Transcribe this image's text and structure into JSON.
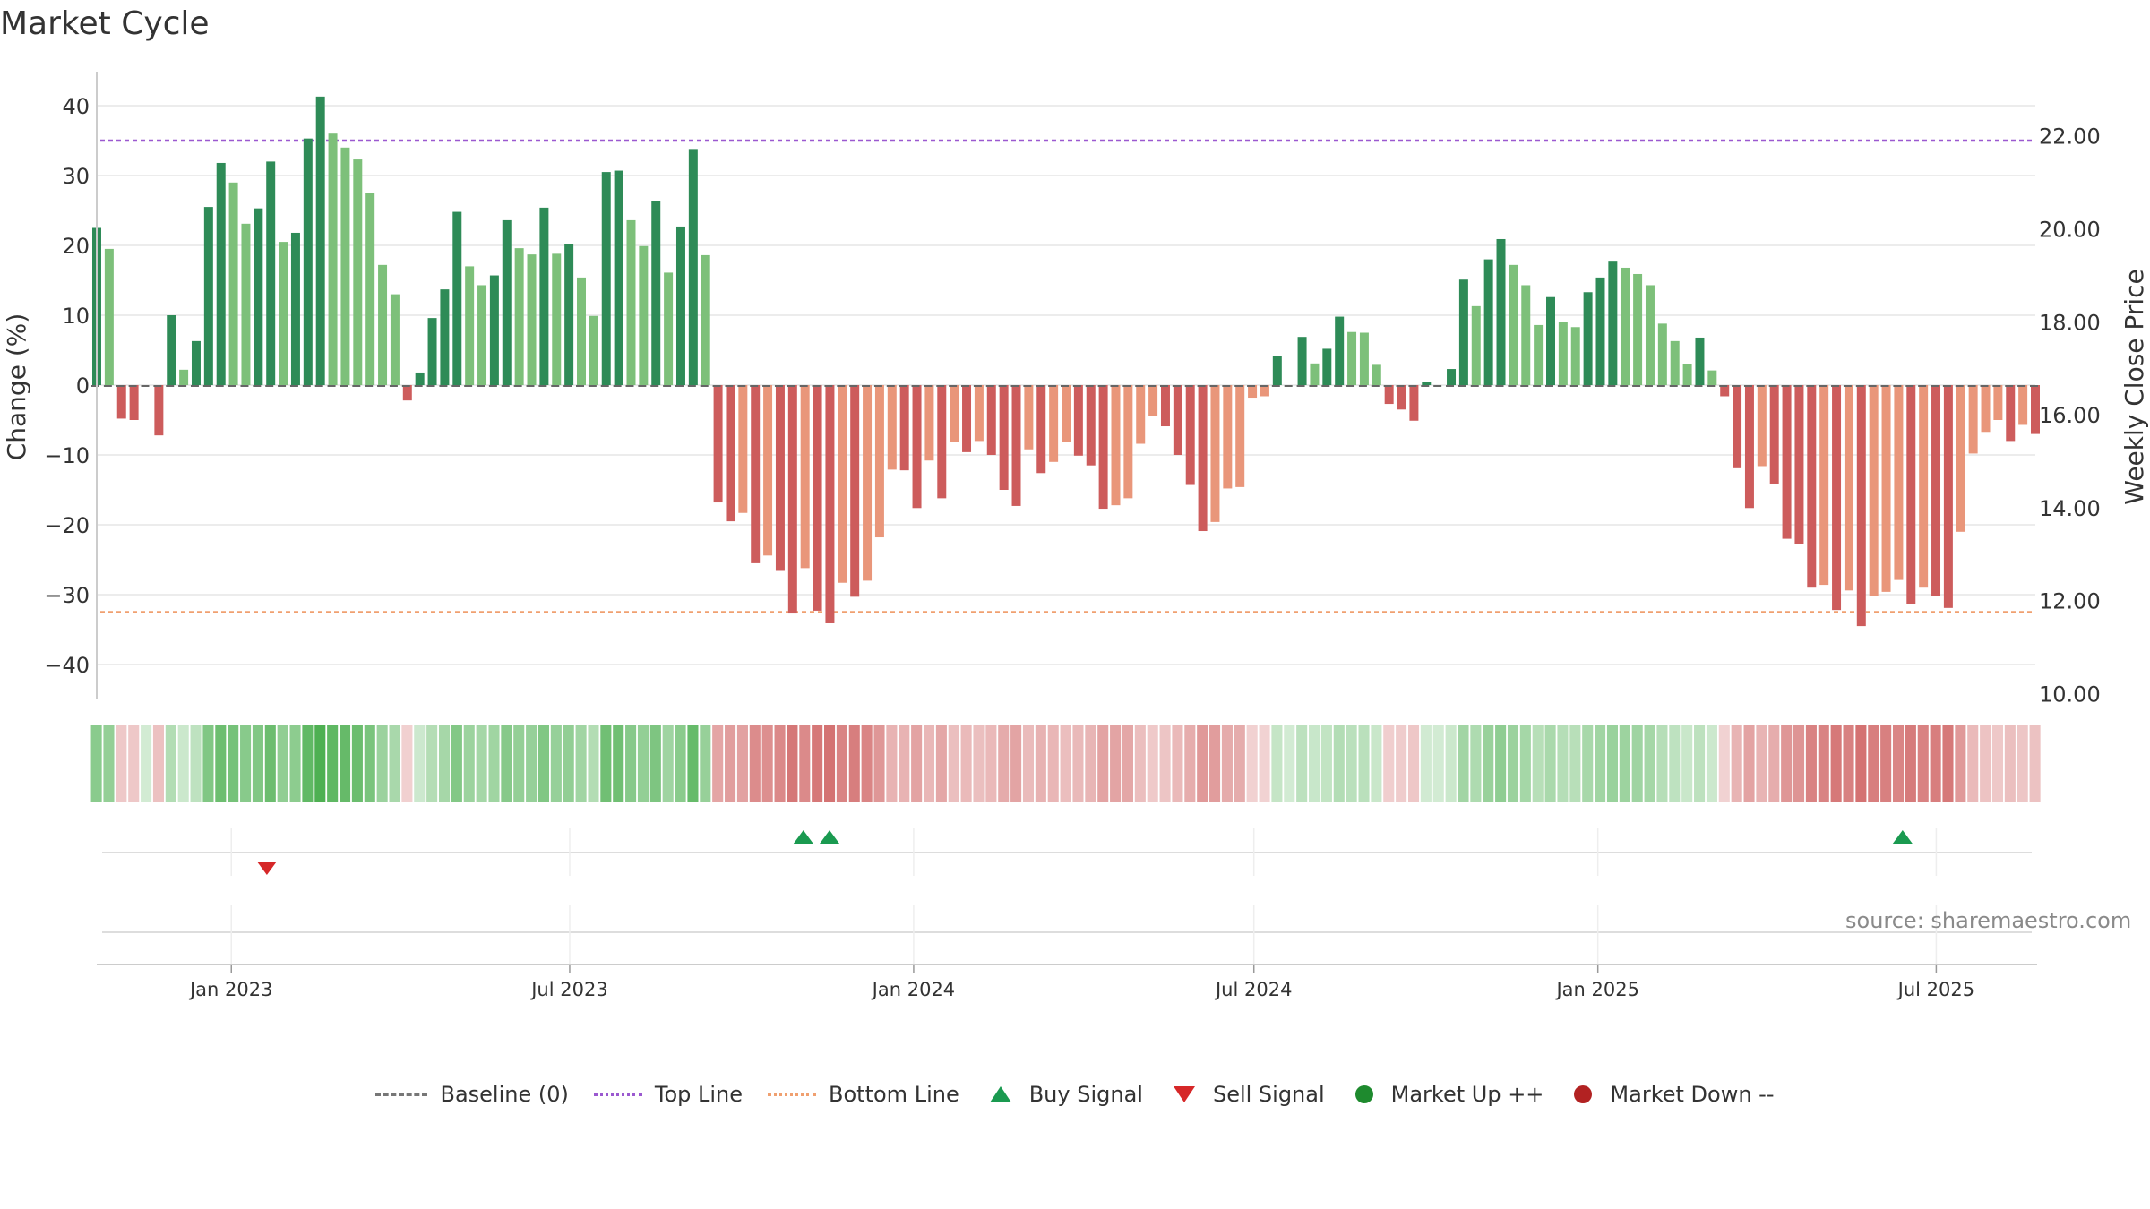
{
  "title": "Market Cycle",
  "source": "source: sharemaestro.com",
  "legend": {
    "baseline": "Baseline (0)",
    "top_line": "Top Line",
    "bottom_line": "Bottom Line",
    "buy_signal": "Buy Signal",
    "sell_signal": "Sell Signal",
    "market_up": "Market Up ++",
    "market_down": "Market Down --"
  },
  "colors": {
    "up_strong": "#2e8b57",
    "up_light": "#7dc07a",
    "down_strong": "#cd5c5c",
    "down_light": "#e9967a",
    "top_line": "#9b59d0",
    "bottom_line": "#f0a070",
    "buy": "#1a9a50",
    "sell": "#d62728",
    "market_up": "#1e8a2e",
    "market_down": "#b22222"
  },
  "chart_data": {
    "type": "bar",
    "ylabel": "Change (%)",
    "y2label": "Weekly Close Price",
    "ylim": [
      -45,
      45
    ],
    "y2lim": [
      9.7,
      22.9
    ],
    "yticks": [
      "40",
      "30",
      "20",
      "10",
      "0",
      "−10",
      "−20",
      "−30",
      "−40"
    ],
    "y2ticks": [
      "22.00",
      "20.00",
      "18.00",
      "16.00",
      "14.00",
      "12.00",
      "10.00"
    ],
    "xticks": [
      "Jan 2023",
      "Jul 2023",
      "Jan 2024",
      "Jul 2024",
      "Jan 2025",
      "Jul 2025"
    ],
    "x_start": "2022-10-21",
    "x_end": "2025-08-23",
    "x_step_days": 7,
    "top_line": 35,
    "bottom_line": -32.5,
    "values": [
      22.5,
      19.5,
      -4.8,
      -5.0,
      0,
      -7.2,
      10,
      2.2,
      6.3,
      25.5,
      31.8,
      29,
      23.1,
      25.3,
      32,
      20.5,
      21.8,
      35.3,
      41.3,
      36,
      34,
      32.3,
      27.5,
      17.2,
      13,
      -2.2,
      1.8,
      9.6,
      13.7,
      24.8,
      17,
      14.3,
      15.7,
      23.6,
      19.6,
      18.7,
      25.4,
      18.8,
      20.2,
      15.4,
      9.9,
      30.5,
      30.7,
      23.6,
      19.9,
      26.3,
      16.1,
      22.7,
      33.8,
      18.6,
      -16.8,
      -19.5,
      -18.3,
      -25.5,
      -24.4,
      -26.6,
      -32.7,
      -26.2,
      -32.3,
      -34.1,
      -28.3,
      -30.3,
      -28,
      -21.8,
      -12.1,
      -12.2,
      -17.6,
      -10.8,
      -16.2,
      -8.1,
      -9.6,
      -8,
      -10,
      -15,
      -17.3,
      -9.2,
      -12.6,
      -11,
      -8.2,
      -10.1,
      -11.5,
      -17.7,
      -17.2,
      -16.2,
      -8.4,
      -4.4,
      -5.9,
      -10,
      -14.3,
      -20.9,
      -19.6,
      -14.8,
      -14.6,
      -1.8,
      -1.6,
      4.2,
      0,
      6.9,
      3.1,
      5.2,
      9.8,
      7.6,
      7.5,
      2.9,
      -2.7,
      -3.5,
      -5.1,
      0.4,
      0,
      2.3,
      15.1,
      11.3,
      18,
      20.9,
      17.2,
      14.3,
      8.6,
      12.6,
      9.1,
      8.3,
      13.3,
      15.4,
      17.8,
      16.8,
      15.9,
      14.3,
      8.8,
      6.3,
      3,
      6.8,
      2.1,
      -1.6,
      -11.9,
      -17.6,
      -11.6,
      -14.1,
      -22,
      -22.8,
      -29,
      -28.6,
      -32.2,
      -29.4,
      -34.5,
      -30.2,
      -29.6,
      -27.9,
      -31.4,
      -29,
      -30.2,
      -31.9,
      -21,
      -9.8,
      -6.7,
      -5,
      -8,
      -5.7,
      -7
    ],
    "buy_signals": [
      "2023-11-03",
      "2023-11-17",
      "2025-06-13"
    ],
    "sell_signals": [
      "2023-01-20"
    ]
  }
}
